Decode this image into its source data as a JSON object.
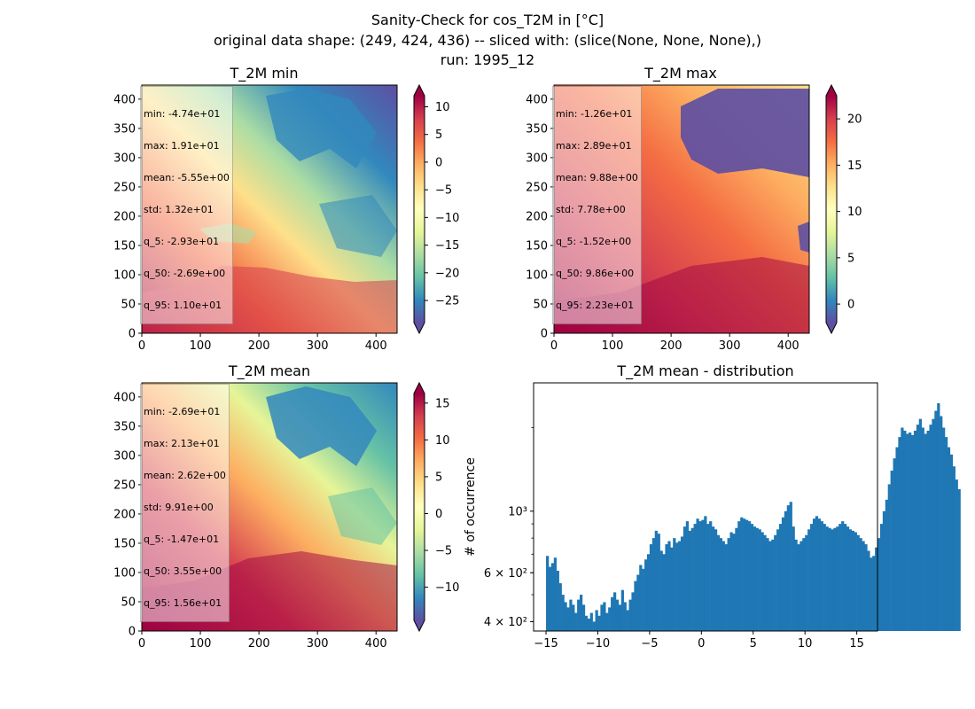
{
  "figure": {
    "title_lines": [
      "Sanity-Check for cos_T2M in [°C]",
      "original data shape: (249, 424, 436) -- sliced with: (slice(None, None, None),)",
      "run: 1995_12"
    ]
  },
  "colors": {
    "hist_bar": "#1f77b4",
    "colormap": "Spectral_r"
  },
  "maps": [
    {
      "title": "T_2M min",
      "x_ticks": [
        "0",
        "100",
        "200",
        "300",
        "400"
      ],
      "y_ticks": [
        "0",
        "50",
        "100",
        "150",
        "200",
        "250",
        "300",
        "350",
        "400"
      ],
      "colorbar_ticks": [
        "10",
        "5",
        "0",
        "−5",
        "−10",
        "−15",
        "−20",
        "−25"
      ],
      "colorbar_range": [
        -29,
        12
      ],
      "stats": [
        "min: -4.74e+01",
        "max: 1.91e+01",
        "mean: -5.55e+00",
        "std: 1.32e+01",
        "q_5: -2.93e+01",
        "q_50: -2.69e+00",
        "q_95: 1.10e+01"
      ]
    },
    {
      "title": "T_2M max",
      "x_ticks": [
        "0",
        "100",
        "200",
        "300",
        "400"
      ],
      "y_ticks": [
        "0",
        "50",
        "100",
        "150",
        "200",
        "250",
        "300",
        "350",
        "400"
      ],
      "colorbar_ticks": [
        "20",
        "15",
        "10",
        "5",
        "0"
      ],
      "colorbar_range": [
        -2,
        22.5
      ],
      "stats": [
        "min: -1.26e+01",
        "max: 2.89e+01",
        "mean: 9.88e+00",
        "std: 7.78e+00",
        "q_5: -1.52e+00",
        "q_50: 9.86e+00",
        "q_95: 2.23e+01"
      ]
    },
    {
      "title": "T_2M mean",
      "x_ticks": [
        "0",
        "100",
        "200",
        "300",
        "400"
      ],
      "y_ticks": [
        "0",
        "50",
        "100",
        "150",
        "200",
        "250",
        "300",
        "350",
        "400"
      ],
      "colorbar_ticks": [
        "15",
        "10",
        "5",
        "0",
        "−5",
        "−10"
      ],
      "colorbar_range": [
        -14.5,
        16.3
      ],
      "stats": [
        "min: -2.69e+01",
        "max: 2.13e+01",
        "mean: 2.62e+00",
        "std: 9.91e+00",
        "q_5: -1.47e+01",
        "q_50: 3.55e+00",
        "q_95: 1.56e+01"
      ]
    }
  ],
  "chart_data": {
    "type": "bar",
    "title": "T_2M mean - distribution",
    "xlabel": "",
    "ylabel": "# of occurrence",
    "y_scale": "log",
    "ylim": [
      370,
      2900
    ],
    "xlim": [
      -16.2,
      17
    ],
    "x_ticks": [
      "−15",
      "−10",
      "−5",
      "0",
      "5",
      "10",
      "15"
    ],
    "y_ticks": [
      "4 × 10²",
      "6 × 10²",
      "10³"
    ],
    "bin_start": -15,
    "bin_width": 0.25,
    "values": [
      690,
      630,
      650,
      680,
      610,
      550,
      500,
      470,
      450,
      480,
      460,
      430,
      480,
      500,
      460,
      420,
      410,
      430,
      400,
      440,
      420,
      460,
      470,
      430,
      450,
      490,
      510,
      480,
      460,
      520,
      470,
      440,
      480,
      510,
      560,
      590,
      640,
      620,
      670,
      700,
      760,
      800,
      850,
      830,
      720,
      700,
      760,
      780,
      740,
      800,
      770,
      780,
      810,
      880,
      920,
      850,
      870,
      900,
      940,
      920,
      930,
      960,
      900,
      920,
      880,
      860,
      820,
      800,
      780,
      760,
      800,
      840,
      830,
      870,
      920,
      950,
      940,
      930,
      920,
      900,
      880,
      870,
      860,
      840,
      820,
      800,
      780,
      790,
      820,
      860,
      900,
      950,
      1000,
      1050,
      1080,
      880,
      790,
      760,
      780,
      800,
      820,
      860,
      900,
      940,
      960,
      940,
      920,
      900,
      880,
      870,
      860,
      870,
      880,
      900,
      920,
      900,
      880,
      860,
      850,
      840,
      820,
      800,
      780,
      760,
      720,
      680,
      690,
      740,
      800,
      900,
      1000,
      1100,
      1250,
      1400,
      1550,
      1700,
      1850,
      2000,
      1950,
      1900,
      1920,
      1880,
      1950,
      2050,
      2150,
      2000,
      1900,
      1950,
      2050,
      2150,
      2300,
      2450,
      2200,
      2000,
      1850,
      1700,
      1600,
      1450,
      1300,
      1200
    ]
  }
}
